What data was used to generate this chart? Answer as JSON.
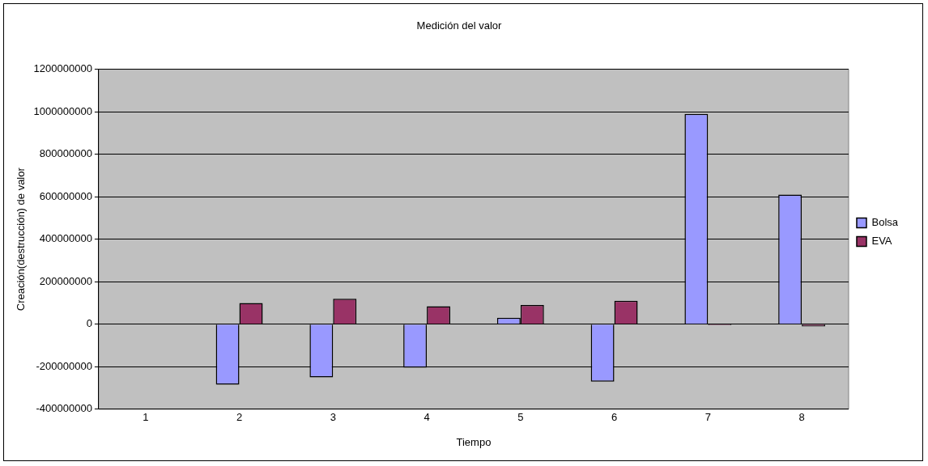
{
  "chart_data": {
    "type": "bar",
    "title": "Medición del valor",
    "xlabel": "Tiempo",
    "ylabel": "Creación(destrucción) de valor",
    "categories": [
      "1",
      "2",
      "3",
      "4",
      "5",
      "6",
      "7",
      "8"
    ],
    "series": [
      {
        "name": "Bolsa",
        "color": "#9999ff",
        "values": [
          0,
          -285000000,
          -250000000,
          -205000000,
          30000000,
          -270000000,
          990000000,
          610000000
        ]
      },
      {
        "name": "EVA",
        "color": "#993366",
        "values": [
          0,
          100000000,
          120000000,
          85000000,
          90000000,
          110000000,
          -5000000,
          -10000000
        ]
      }
    ],
    "ylim": [
      -400000000,
      1200000000
    ],
    "yticks": [
      -400000000,
      -200000000,
      0,
      200000000,
      400000000,
      600000000,
      800000000,
      1000000000,
      1200000000
    ],
    "grid": "y",
    "legend": "right"
  }
}
